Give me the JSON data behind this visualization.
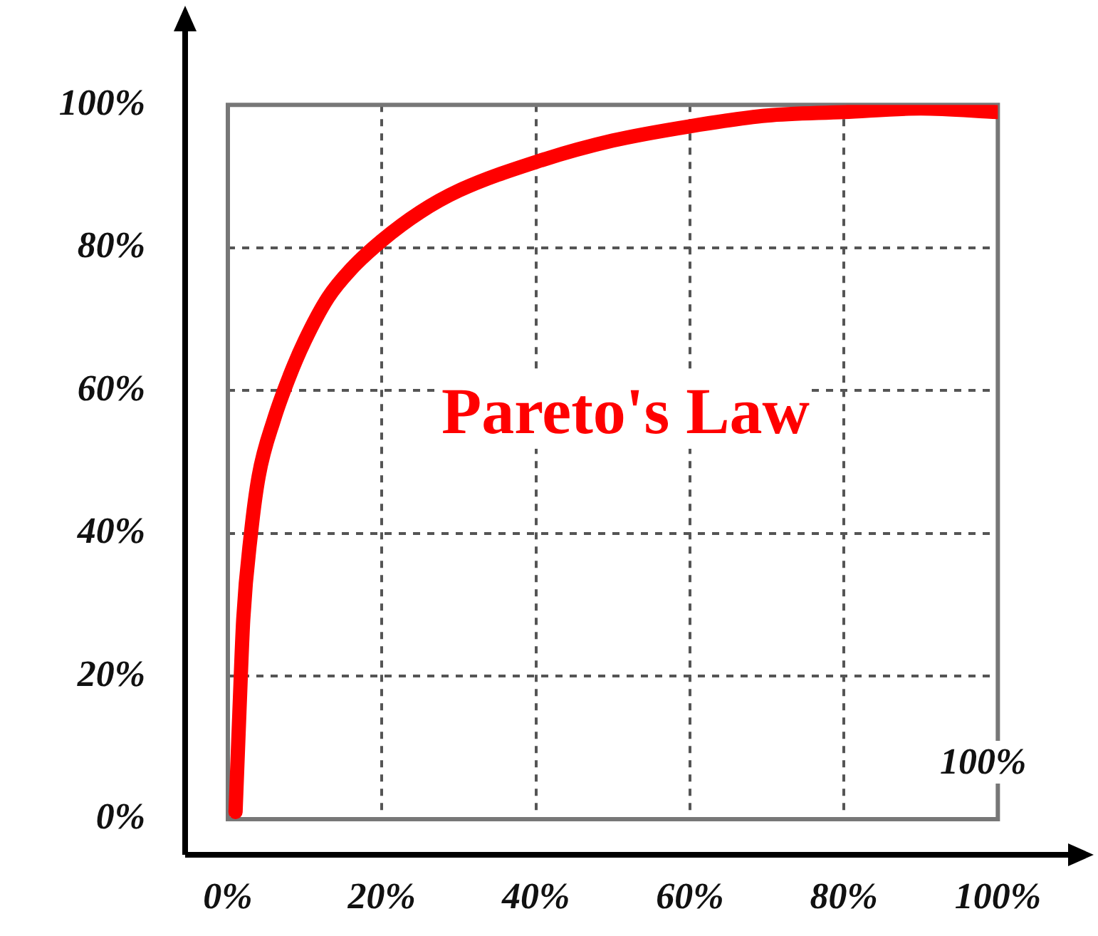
{
  "chart_data": {
    "type": "line",
    "x": [
      1,
      1.5,
      2,
      3,
      4,
      6,
      8,
      10,
      13,
      16,
      20,
      25,
      30,
      40,
      50,
      60,
      70,
      80,
      90,
      100
    ],
    "series": [
      {
        "color": "#ff0000",
        "values": [
          1,
          15,
          28,
          40,
          48,
          56,
          62,
          67,
          73,
          77,
          81,
          85,
          88,
          92,
          95,
          97,
          98.5,
          99,
          99.5,
          99
        ]
      }
    ],
    "xlim": [
      0,
      100
    ],
    "ylim": [
      0,
      100
    ],
    "xticks": [
      {
        "value": 0,
        "label": "0%"
      },
      {
        "value": 20,
        "label": "20%"
      },
      {
        "value": 40,
        "label": "40%"
      },
      {
        "value": 60,
        "label": "60%"
      },
      {
        "value": 80,
        "label": "80%"
      },
      {
        "value": 100,
        "label": "100%"
      }
    ],
    "yticks": [
      {
        "value": 0,
        "label": "0%"
      },
      {
        "value": 20,
        "label": "20%"
      },
      {
        "value": 40,
        "label": "40%"
      },
      {
        "value": 60,
        "label": "60%"
      },
      {
        "value": 80,
        "label": "80%"
      },
      {
        "value": 100,
        "label": "100%"
      }
    ],
    "annotations": [
      "Pareto's Law",
      "100%"
    ],
    "grid": true,
    "legend": false,
    "marker": "none",
    "line_style": "solid"
  }
}
